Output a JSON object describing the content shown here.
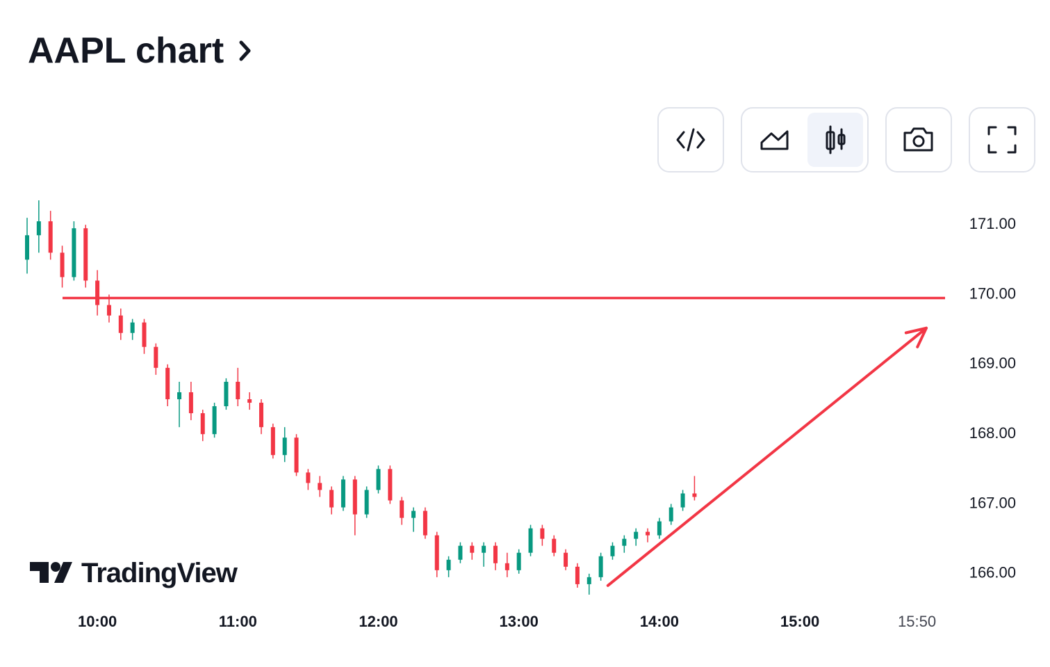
{
  "chart_data": {
    "type": "candlestick",
    "title": "AAPL chart",
    "brand": "TradingView",
    "up_color": "#089981",
    "down_color": "#f23645",
    "xlim": [
      "09:30",
      "16:02"
    ],
    "xticks": [
      "10:00",
      "11:00",
      "12:00",
      "13:00",
      "14:00",
      "15:00",
      "15:50"
    ],
    "ylim": [
      165.55,
      171.53
    ],
    "yticks": [
      {
        "value": 166,
        "label": "166.00"
      },
      {
        "value": 167,
        "label": "167.00"
      },
      {
        "value": 168,
        "label": "168.00"
      },
      {
        "value": 169,
        "label": "169.00"
      },
      {
        "value": 170,
        "label": "170.00"
      },
      {
        "value": 171,
        "label": "171.00"
      }
    ],
    "x": [
      "09:30",
      "09:35",
      "09:40",
      "09:45",
      "09:50",
      "09:55",
      "10:00",
      "10:05",
      "10:10",
      "10:15",
      "10:20",
      "10:25",
      "10:30",
      "10:35",
      "10:40",
      "10:45",
      "10:50",
      "10:55",
      "11:00",
      "11:05",
      "11:10",
      "11:15",
      "11:20",
      "11:25",
      "11:30",
      "11:35",
      "11:40",
      "11:45",
      "11:50",
      "11:55",
      "12:00",
      "12:05",
      "12:10",
      "12:15",
      "12:20",
      "12:25",
      "12:30",
      "12:35",
      "12:40",
      "12:45",
      "12:50",
      "12:55",
      "13:00",
      "13:05",
      "13:10",
      "13:15",
      "13:20",
      "13:25",
      "13:30",
      "13:35",
      "13:40",
      "13:45",
      "13:50",
      "13:55",
      "14:00",
      "14:05",
      "14:10",
      "14:15"
    ],
    "open": [
      170.5,
      170.85,
      171.05,
      170.6,
      170.25,
      170.95,
      170.2,
      169.85,
      169.7,
      169.45,
      169.6,
      169.25,
      168.95,
      168.5,
      168.6,
      168.3,
      168.0,
      168.4,
      168.75,
      168.5,
      168.45,
      168.1,
      167.7,
      167.95,
      167.45,
      167.3,
      167.2,
      166.95,
      167.35,
      166.85,
      167.2,
      167.5,
      167.05,
      166.8,
      166.9,
      166.55,
      166.05,
      166.2,
      166.4,
      166.3,
      166.4,
      166.15,
      166.05,
      166.3,
      166.65,
      166.5,
      166.3,
      166.1,
      165.85,
      165.95,
      166.25,
      166.4,
      166.5,
      166.6,
      166.55,
      166.75,
      166.95,
      167.15
    ],
    "high": [
      171.1,
      171.35,
      171.2,
      170.7,
      171.05,
      171.0,
      170.35,
      170.0,
      169.8,
      169.65,
      169.65,
      169.3,
      169.0,
      168.75,
      168.75,
      168.35,
      168.45,
      168.8,
      168.95,
      168.6,
      168.5,
      168.15,
      168.1,
      168.0,
      167.5,
      167.4,
      167.25,
      167.4,
      167.4,
      167.25,
      167.55,
      167.55,
      167.1,
      166.95,
      166.95,
      166.6,
      166.25,
      166.45,
      166.45,
      166.45,
      166.45,
      166.3,
      166.35,
      166.7,
      166.7,
      166.55,
      166.35,
      166.15,
      166.0,
      166.3,
      166.45,
      166.55,
      166.65,
      166.65,
      166.8,
      167.0,
      167.2,
      167.4
    ],
    "low": [
      170.3,
      170.6,
      170.5,
      170.1,
      170.2,
      170.1,
      169.7,
      169.6,
      169.35,
      169.35,
      169.15,
      168.85,
      168.4,
      168.1,
      168.2,
      167.9,
      167.95,
      168.35,
      168.4,
      168.35,
      168.0,
      167.65,
      167.6,
      167.4,
      167.2,
      167.1,
      166.85,
      166.9,
      166.55,
      166.8,
      167.15,
      167.0,
      166.7,
      166.6,
      166.5,
      165.95,
      165.95,
      166.15,
      166.2,
      166.1,
      166.05,
      165.95,
      166.0,
      166.25,
      166.4,
      166.25,
      166.05,
      165.8,
      165.7,
      165.9,
      166.2,
      166.3,
      166.4,
      166.45,
      166.5,
      166.7,
      166.9,
      167.05
    ],
    "close": [
      170.85,
      171.05,
      170.6,
      170.25,
      170.95,
      170.2,
      169.85,
      169.7,
      169.45,
      169.6,
      169.25,
      168.95,
      168.5,
      168.6,
      168.3,
      168.0,
      168.4,
      168.75,
      168.5,
      168.45,
      168.1,
      167.7,
      167.95,
      167.45,
      167.3,
      167.2,
      166.95,
      167.35,
      166.85,
      167.2,
      167.5,
      167.05,
      166.8,
      166.9,
      166.55,
      166.05,
      166.2,
      166.4,
      166.3,
      166.4,
      166.15,
      166.05,
      166.3,
      166.65,
      166.5,
      166.3,
      166.1,
      165.85,
      165.95,
      166.25,
      166.4,
      166.5,
      166.6,
      166.55,
      166.75,
      166.95,
      167.15,
      167.1
    ],
    "hline": {
      "value": 169.95,
      "color": "#f23645"
    },
    "arrow": {
      "x": [
        "13:38",
        "15:54"
      ],
      "y": [
        165.83,
        169.52
      ],
      "color": "#f23645"
    }
  }
}
